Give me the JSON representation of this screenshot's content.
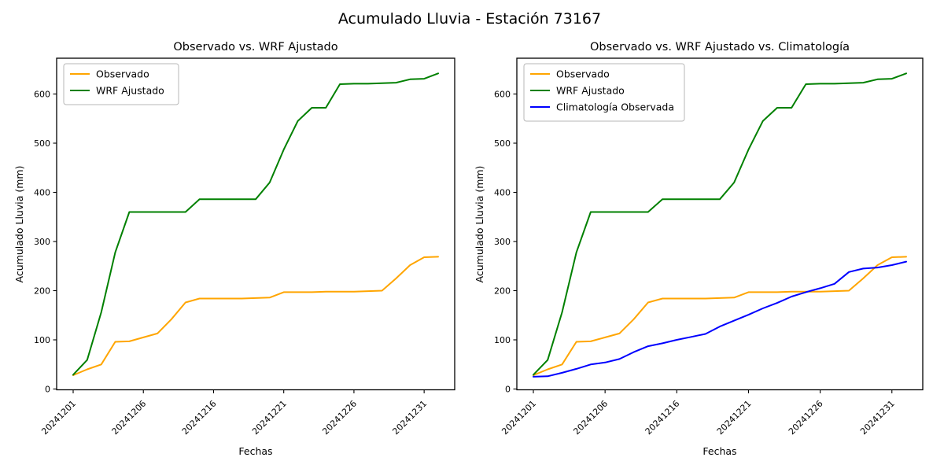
{
  "figure": {
    "title": "Acumulado Lluvia - Estación 73167",
    "background": "#ffffff",
    "text_color": "#000000"
  },
  "chart_data": [
    {
      "type": "line",
      "title": "Observado vs. WRF Ajustado",
      "xlabel": "Fechas",
      "ylabel": "Acumulado Lluvia (mm)",
      "ylim": [
        -5,
        672
      ],
      "yticks": [
        0,
        100,
        200,
        300,
        400,
        500,
        600
      ],
      "grid": false,
      "n_points": 27,
      "x_tick_indices": [
        0,
        5,
        10,
        15,
        20,
        25
      ],
      "x_tick_labels": [
        "20241201",
        "20241206",
        "20241216",
        "20241221",
        "20241226",
        "20241231"
      ],
      "x_tick_rotation": 45,
      "legend_position": "upper left",
      "legend": [
        "Observado",
        "WRF Ajustado"
      ],
      "series": [
        {
          "name": "Observado",
          "color": "#ffa500",
          "values": [
            28,
            40,
            50,
            96,
            97,
            105,
            113,
            142,
            176,
            184,
            184,
            184,
            184,
            185,
            186,
            197,
            197,
            197,
            198,
            198,
            198,
            199,
            200,
            225,
            252,
            268,
            269
          ]
        },
        {
          "name": "WRF Ajustado",
          "color": "#008000",
          "values": [
            29,
            59,
            156,
            278,
            360,
            360,
            360,
            360,
            360,
            386,
            386,
            386,
            386,
            386,
            420,
            487,
            545,
            572,
            572,
            620,
            621,
            621,
            622,
            623,
            630,
            631,
            642
          ]
        }
      ]
    },
    {
      "type": "line",
      "title": "Observado vs. WRF Ajustado vs. Climatología",
      "xlabel": "Fechas",
      "ylabel": "Acumulado Lluvia (mm)",
      "ylim": [
        -5,
        672
      ],
      "yticks": [
        0,
        100,
        200,
        300,
        400,
        500,
        600
      ],
      "grid": false,
      "n_points": 27,
      "x_tick_indices": [
        0,
        5,
        10,
        15,
        20,
        25
      ],
      "x_tick_labels": [
        "20241201",
        "20241206",
        "20241216",
        "20241221",
        "20241226",
        "20241231"
      ],
      "x_tick_rotation": 45,
      "legend_position": "upper left",
      "legend": [
        "Observado",
        "WRF Ajustado",
        "Climatología Observada"
      ],
      "series": [
        {
          "name": "Observado",
          "color": "#ffa500",
          "values": [
            28,
            40,
            50,
            96,
            97,
            105,
            113,
            142,
            176,
            184,
            184,
            184,
            184,
            185,
            186,
            197,
            197,
            197,
            198,
            198,
            198,
            199,
            200,
            225,
            252,
            268,
            269
          ]
        },
        {
          "name": "WRF Ajustado",
          "color": "#008000",
          "values": [
            29,
            59,
            156,
            278,
            360,
            360,
            360,
            360,
            360,
            386,
            386,
            386,
            386,
            386,
            420,
            487,
            545,
            572,
            572,
            620,
            621,
            621,
            622,
            623,
            630,
            631,
            642
          ]
        },
        {
          "name": "Climatología Observada",
          "color": "#0000ff",
          "values": [
            25,
            26,
            33,
            41,
            50,
            54,
            61,
            75,
            87,
            93,
            100,
            106,
            112,
            127,
            139,
            151,
            164,
            175,
            188,
            197,
            205,
            214,
            238,
            245,
            247,
            252,
            259
          ]
        }
      ]
    }
  ]
}
